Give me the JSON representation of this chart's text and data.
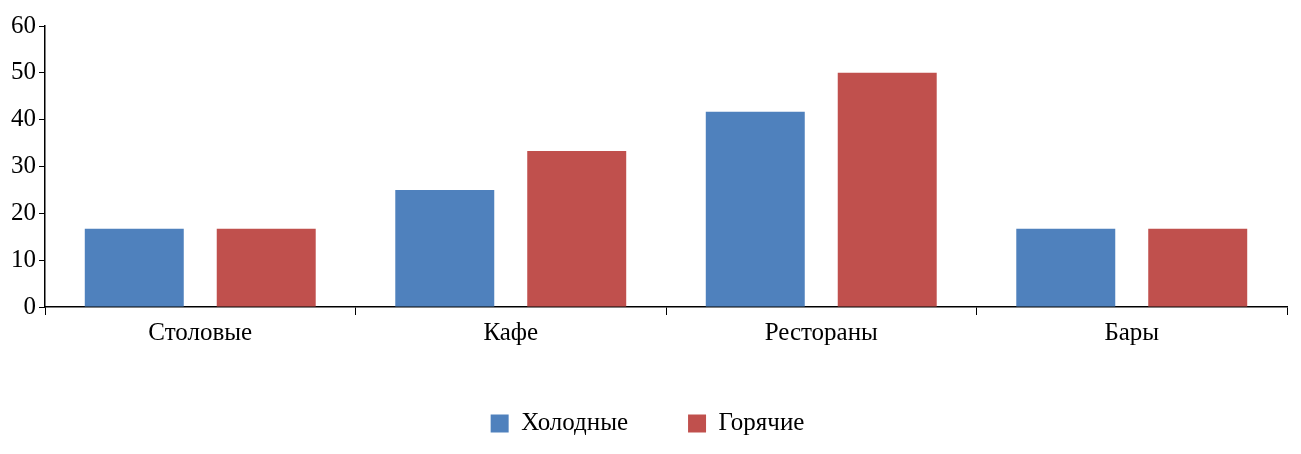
{
  "chart_data": {
    "type": "bar",
    "categories": [
      "Столовые",
      "Кафе",
      "Рестораны",
      "Бары"
    ],
    "series": [
      {
        "name": "Холодные",
        "color": "#4f81bd",
        "values": [
          16.7,
          25,
          41.7,
          16.7
        ]
      },
      {
        "name": "Горячие",
        "color": "#c0504d",
        "values": [
          16.7,
          33.3,
          50,
          16.7
        ]
      }
    ],
    "ylim": [
      0,
      60
    ],
    "yticks": [
      0,
      10,
      20,
      30,
      40,
      50,
      60
    ],
    "grid": false,
    "legend": "bottom"
  }
}
